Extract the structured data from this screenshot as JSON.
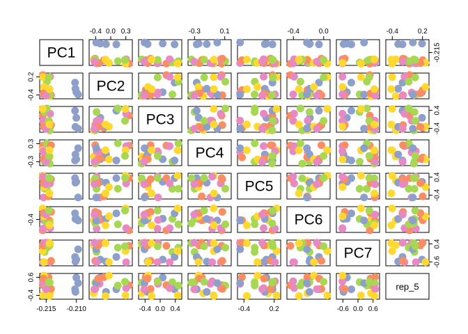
{
  "chart_data": {
    "type": "scatter",
    "variables": [
      "PC1",
      "PC2",
      "PC3",
      "PC4",
      "PC5",
      "PC6",
      "PC7",
      "rep_5"
    ],
    "grid": false,
    "point_colors": [
      "#8DA0CB",
      "#FC8D62",
      "#E78AC3",
      "#A6D854",
      "#FFD92F"
    ],
    "axes": {
      "top": [
        {
          "col": 1,
          "ticks": [
            "-0.4",
            "0.0",
            "0.3"
          ]
        },
        {
          "col": 3,
          "ticks": [
            "-0.3",
            "0.1"
          ]
        },
        {
          "col": 5,
          "ticks": [
            "-0.4",
            "0.0"
          ]
        },
        {
          "col": 7,
          "ticks": [
            "-0.4",
            "0.2"
          ]
        }
      ],
      "bottom": [
        {
          "col": 0,
          "ticks": [
            "-0.215",
            "-0.210"
          ]
        },
        {
          "col": 2,
          "ticks": [
            "-0.4",
            "0.0",
            "0.4"
          ]
        },
        {
          "col": 4,
          "ticks": [
            "-0.4",
            "0.2"
          ]
        },
        {
          "col": 6,
          "ticks": [
            "-0.6",
            "0.0",
            "0.6"
          ]
        }
      ],
      "left": [
        {
          "row": 1,
          "ticks": [
            "-0.4",
            "0.2"
          ]
        },
        {
          "row": 3,
          "ticks": [
            "-0.3",
            "0.3"
          ]
        },
        {
          "row": 5,
          "ticks": [
            "-0.4"
          ]
        },
        {
          "row": 7,
          "ticks": [
            "-0.4",
            "0.6"
          ]
        }
      ],
      "right": [
        {
          "row": 0,
          "ticks": [
            "-0.215"
          ]
        },
        {
          "row": 2,
          "ticks": [
            "-0.4",
            "0.4"
          ]
        },
        {
          "row": 4,
          "ticks": [
            "-0.4",
            "0.4"
          ]
        },
        {
          "row": 6,
          "ticks": [
            "-0.6",
            "0.4"
          ]
        }
      ]
    }
  }
}
